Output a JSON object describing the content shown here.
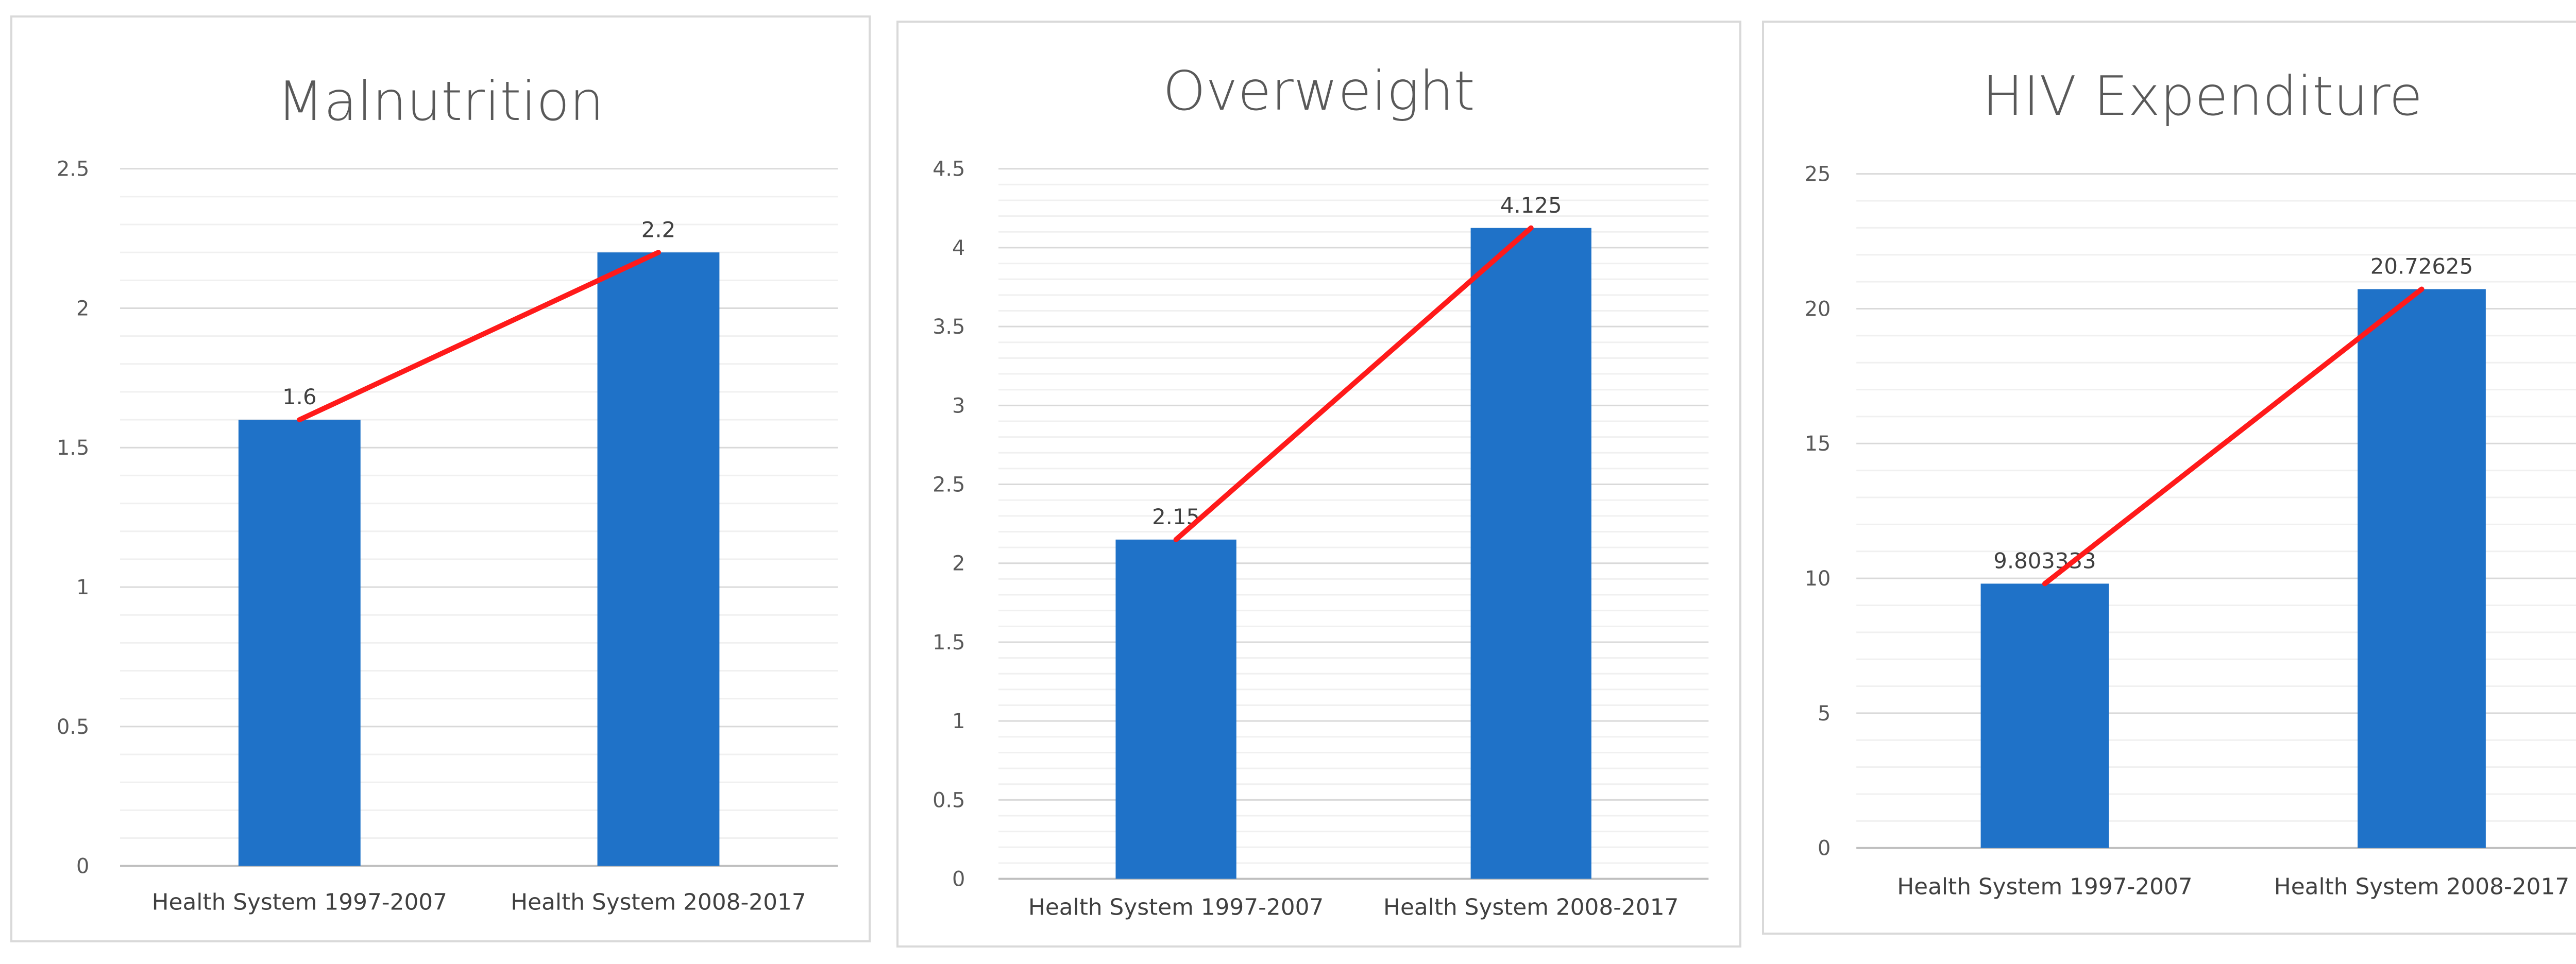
{
  "chart_data": [
    {
      "type": "bar",
      "title": "Malnutrition",
      "categories": [
        "Health System 1997-2007",
        "Health System 2008-2017"
      ],
      "values": [
        1.6,
        2.2
      ],
      "data_labels": [
        "1.6",
        "2.2"
      ],
      "ylim": [
        0,
        2.5
      ],
      "y_ticks": [
        "0",
        "0.5",
        "1",
        "1.5",
        "2",
        "2.5"
      ],
      "y_tick_values": [
        0,
        0.5,
        1,
        1.5,
        2,
        2.5
      ],
      "minor_gridlines": 5,
      "bar_color": "#1F72C8",
      "trend_line_color": "#FF1A1A",
      "grid": true
    },
    {
      "type": "bar",
      "title": "Overweight",
      "categories": [
        "Health System 1997-2007",
        "Health System 2008-2017"
      ],
      "values": [
        2.15,
        4.125
      ],
      "data_labels": [
        "2.15",
        "4.125"
      ],
      "ylim": [
        0,
        4.5
      ],
      "y_ticks": [
        "0",
        "0.5",
        "1",
        "1.5",
        "2",
        "2.5",
        "3",
        "3.5",
        "4",
        "4.5"
      ],
      "y_tick_values": [
        0,
        0.5,
        1,
        1.5,
        2,
        2.5,
        3,
        3.5,
        4,
        4.5
      ],
      "minor_gridlines": 5,
      "bar_color": "#1F72C8",
      "trend_line_color": "#FF1A1A",
      "grid": true
    },
    {
      "type": "bar",
      "title": "HIV Expenditure",
      "categories": [
        "Health System 1997-2007",
        "Health System 2008-2017"
      ],
      "values": [
        9.803333,
        20.72625
      ],
      "data_labels": [
        "9.803333",
        "20.72625"
      ],
      "ylim": [
        0,
        25
      ],
      "y_ticks": [
        "0",
        "5",
        "10",
        "15",
        "20",
        "25"
      ],
      "y_tick_values": [
        0,
        5,
        10,
        15,
        20,
        25
      ],
      "minor_gridlines": 5,
      "bar_color": "#1F72C8",
      "trend_line_color": "#FF1A1A",
      "grid": true
    }
  ]
}
